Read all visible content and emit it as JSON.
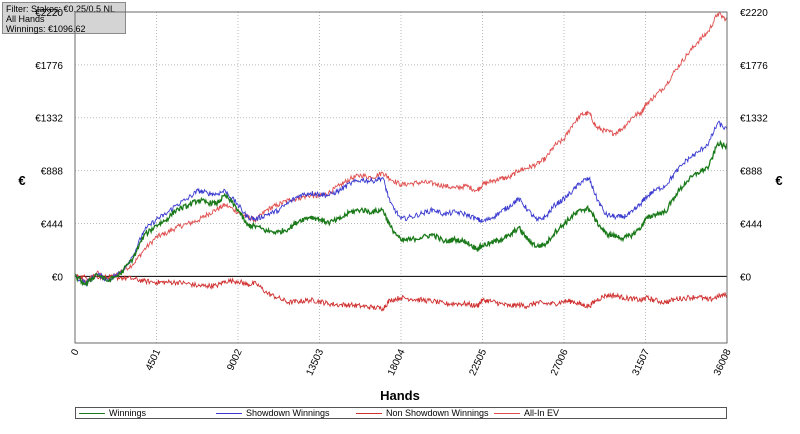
{
  "info": {
    "filter": "Filter: Stakes: €0.25/0.5 NL",
    "hands_filter": "All Hands",
    "winnings": "Winnings: €1096.62"
  },
  "colors": {
    "winnings": "#1a7a1a",
    "showdown": "#3a3ad0",
    "non_showdown": "#d03030",
    "allin_ev": "#e05050",
    "grid": "#b8b8b8",
    "zero_line": "#000000"
  },
  "chart_data": {
    "type": "line",
    "xlabel": "Hands",
    "ylabel": "€",
    "xlim": [
      0,
      36008
    ],
    "ylim": [
      -560,
      2220
    ],
    "x_ticks": [
      "0",
      "4501",
      "9002",
      "13503",
      "18004",
      "22505",
      "27006",
      "31507",
      "36008"
    ],
    "y_ticks": [
      "€0",
      "€444",
      "€888",
      "€1332",
      "€1776",
      "€2220"
    ],
    "series": [
      {
        "name": "Winnings",
        "key": "winnings",
        "points": [
          [
            0,
            0
          ],
          [
            600,
            -70
          ],
          [
            1200,
            20
          ],
          [
            1800,
            -40
          ],
          [
            2500,
            20
          ],
          [
            3200,
            150
          ],
          [
            3800,
            340
          ],
          [
            4501,
            430
          ],
          [
            5000,
            470
          ],
          [
            5600,
            560
          ],
          [
            6200,
            590
          ],
          [
            6800,
            640
          ],
          [
            7300,
            620
          ],
          [
            7800,
            610
          ],
          [
            8300,
            680
          ],
          [
            9002,
            560
          ],
          [
            9500,
            430
          ],
          [
            10000,
            420
          ],
          [
            10600,
            380
          ],
          [
            11200,
            370
          ],
          [
            11800,
            400
          ],
          [
            12400,
            470
          ],
          [
            13000,
            500
          ],
          [
            13503,
            480
          ],
          [
            14000,
            450
          ],
          [
            14600,
            480
          ],
          [
            15200,
            540
          ],
          [
            15800,
            560
          ],
          [
            16400,
            540
          ],
          [
            17000,
            560
          ],
          [
            17400,
            420
          ],
          [
            18004,
            300
          ],
          [
            18600,
            310
          ],
          [
            19200,
            330
          ],
          [
            19800,
            350
          ],
          [
            20400,
            290
          ],
          [
            21000,
            310
          ],
          [
            21600,
            290
          ],
          [
            22200,
            230
          ],
          [
            22505,
            260
          ],
          [
            23000,
            280
          ],
          [
            23500,
            310
          ],
          [
            24000,
            340
          ],
          [
            24500,
            410
          ],
          [
            25000,
            310
          ],
          [
            25500,
            250
          ],
          [
            26000,
            270
          ],
          [
            26500,
            370
          ],
          [
            27006,
            440
          ],
          [
            27500,
            510
          ],
          [
            28000,
            560
          ],
          [
            28400,
            570
          ],
          [
            28800,
            460
          ],
          [
            29300,
            360
          ],
          [
            29800,
            340
          ],
          [
            30300,
            320
          ],
          [
            30800,
            350
          ],
          [
            31300,
            420
          ],
          [
            31507,
            480
          ],
          [
            32000,
            520
          ],
          [
            32600,
            540
          ],
          [
            33200,
            690
          ],
          [
            33800,
            800
          ],
          [
            34400,
            870
          ],
          [
            35000,
            920
          ],
          [
            35500,
            1120
          ],
          [
            36008,
            1080
          ]
        ]
      },
      {
        "name": "Showdown Winnings",
        "key": "showdown",
        "points": [
          [
            0,
            0
          ],
          [
            600,
            -60
          ],
          [
            1200,
            20
          ],
          [
            1800,
            -30
          ],
          [
            2500,
            30
          ],
          [
            3200,
            170
          ],
          [
            3800,
            380
          ],
          [
            4501,
            480
          ],
          [
            5000,
            520
          ],
          [
            5600,
            600
          ],
          [
            6200,
            650
          ],
          [
            6800,
            720
          ],
          [
            7300,
            700
          ],
          [
            7800,
            690
          ],
          [
            8300,
            720
          ],
          [
            9002,
            600
          ],
          [
            9500,
            500
          ],
          [
            10000,
            480
          ],
          [
            10600,
            520
          ],
          [
            11200,
            550
          ],
          [
            11800,
            620
          ],
          [
            12400,
            680
          ],
          [
            13000,
            700
          ],
          [
            13503,
            690
          ],
          [
            14000,
            680
          ],
          [
            14600,
            720
          ],
          [
            15200,
            780
          ],
          [
            15800,
            810
          ],
          [
            16400,
            800
          ],
          [
            17000,
            830
          ],
          [
            17400,
            620
          ],
          [
            18004,
            480
          ],
          [
            18600,
            500
          ],
          [
            19200,
            530
          ],
          [
            19800,
            560
          ],
          [
            20400,
            520
          ],
          [
            21000,
            540
          ],
          [
            21600,
            520
          ],
          [
            22200,
            480
          ],
          [
            22505,
            460
          ],
          [
            23000,
            490
          ],
          [
            23500,
            540
          ],
          [
            24000,
            590
          ],
          [
            24500,
            650
          ],
          [
            25000,
            560
          ],
          [
            25500,
            470
          ],
          [
            26000,
            500
          ],
          [
            26500,
            600
          ],
          [
            27006,
            650
          ],
          [
            27500,
            720
          ],
          [
            28000,
            800
          ],
          [
            28400,
            820
          ],
          [
            28800,
            660
          ],
          [
            29300,
            520
          ],
          [
            29800,
            500
          ],
          [
            30300,
            500
          ],
          [
            30800,
            540
          ],
          [
            31300,
            620
          ],
          [
            31507,
            660
          ],
          [
            32000,
            720
          ],
          [
            32600,
            760
          ],
          [
            33200,
            880
          ],
          [
            33800,
            980
          ],
          [
            34400,
            1040
          ],
          [
            35000,
            1120
          ],
          [
            35500,
            1290
          ],
          [
            36008,
            1230
          ]
        ]
      },
      {
        "name": "Non Showdown Winnings",
        "key": "non_showdown",
        "points": [
          [
            0,
            0
          ],
          [
            600,
            -10
          ],
          [
            1200,
            0
          ],
          [
            1800,
            -10
          ],
          [
            2500,
            -10
          ],
          [
            3200,
            -20
          ],
          [
            3800,
            -40
          ],
          [
            4501,
            -50
          ],
          [
            5000,
            -50
          ],
          [
            5600,
            -50
          ],
          [
            6200,
            -60
          ],
          [
            6800,
            -80
          ],
          [
            7300,
            -80
          ],
          [
            7800,
            -80
          ],
          [
            8300,
            -40
          ],
          [
            9002,
            -40
          ],
          [
            9500,
            -70
          ],
          [
            10000,
            -60
          ],
          [
            10600,
            -140
          ],
          [
            11200,
            -180
          ],
          [
            11800,
            -220
          ],
          [
            12400,
            -210
          ],
          [
            13000,
            -200
          ],
          [
            13503,
            -210
          ],
          [
            14000,
            -230
          ],
          [
            14600,
            -240
          ],
          [
            15200,
            -240
          ],
          [
            15800,
            -250
          ],
          [
            16400,
            -260
          ],
          [
            17000,
            -270
          ],
          [
            17400,
            -200
          ],
          [
            18004,
            -180
          ],
          [
            18600,
            -190
          ],
          [
            19200,
            -200
          ],
          [
            19800,
            -210
          ],
          [
            20400,
            -230
          ],
          [
            21000,
            -230
          ],
          [
            21600,
            -230
          ],
          [
            22200,
            -250
          ],
          [
            22505,
            -200
          ],
          [
            23000,
            -210
          ],
          [
            23500,
            -230
          ],
          [
            24000,
            -250
          ],
          [
            24500,
            -240
          ],
          [
            25000,
            -250
          ],
          [
            25500,
            -220
          ],
          [
            26000,
            -230
          ],
          [
            26500,
            -230
          ],
          [
            27006,
            -210
          ],
          [
            27500,
            -210
          ],
          [
            28000,
            -240
          ],
          [
            28400,
            -250
          ],
          [
            28800,
            -200
          ],
          [
            29300,
            -160
          ],
          [
            29800,
            -160
          ],
          [
            30300,
            -180
          ],
          [
            30800,
            -190
          ],
          [
            31300,
            -200
          ],
          [
            31507,
            -180
          ],
          [
            32000,
            -200
          ],
          [
            32600,
            -220
          ],
          [
            33200,
            -190
          ],
          [
            33800,
            -180
          ],
          [
            34400,
            -170
          ],
          [
            35000,
            -200
          ],
          [
            35500,
            -170
          ],
          [
            36008,
            -150
          ]
        ]
      },
      {
        "name": "All-In EV",
        "key": "allin_ev",
        "points": [
          [
            0,
            0
          ],
          [
            600,
            -50
          ],
          [
            1200,
            30
          ],
          [
            1800,
            -30
          ],
          [
            2500,
            40
          ],
          [
            3200,
            100
          ],
          [
            3800,
            220
          ],
          [
            4501,
            330
          ],
          [
            5000,
            360
          ],
          [
            5600,
            410
          ],
          [
            6200,
            440
          ],
          [
            6800,
            470
          ],
          [
            7300,
            520
          ],
          [
            7800,
            560
          ],
          [
            8300,
            600
          ],
          [
            9002,
            540
          ],
          [
            9500,
            500
          ],
          [
            10000,
            470
          ],
          [
            10600,
            560
          ],
          [
            11200,
            600
          ],
          [
            11800,
            640
          ],
          [
            12400,
            660
          ],
          [
            13000,
            680
          ],
          [
            13503,
            670
          ],
          [
            14000,
            700
          ],
          [
            14600,
            760
          ],
          [
            15200,
            820
          ],
          [
            15800,
            850
          ],
          [
            16400,
            830
          ],
          [
            17000,
            870
          ],
          [
            17400,
            820
          ],
          [
            18004,
            770
          ],
          [
            18600,
            780
          ],
          [
            19200,
            790
          ],
          [
            19800,
            780
          ],
          [
            20400,
            760
          ],
          [
            21000,
            740
          ],
          [
            21600,
            760
          ],
          [
            22200,
            720
          ],
          [
            22505,
            770
          ],
          [
            23000,
            800
          ],
          [
            23500,
            820
          ],
          [
            24000,
            830
          ],
          [
            24500,
            890
          ],
          [
            25000,
            910
          ],
          [
            25500,
            940
          ],
          [
            26000,
            990
          ],
          [
            26500,
            1100
          ],
          [
            27006,
            1150
          ],
          [
            27500,
            1280
          ],
          [
            28000,
            1360
          ],
          [
            28400,
            1370
          ],
          [
            28800,
            1250
          ],
          [
            29300,
            1220
          ],
          [
            29800,
            1200
          ],
          [
            30300,
            1250
          ],
          [
            30800,
            1340
          ],
          [
            31300,
            1380
          ],
          [
            31507,
            1440
          ],
          [
            32000,
            1510
          ],
          [
            32600,
            1600
          ],
          [
            33200,
            1740
          ],
          [
            33800,
            1860
          ],
          [
            34400,
            1970
          ],
          [
            35000,
            2060
          ],
          [
            35500,
            2210
          ],
          [
            36008,
            2150
          ]
        ]
      }
    ]
  }
}
